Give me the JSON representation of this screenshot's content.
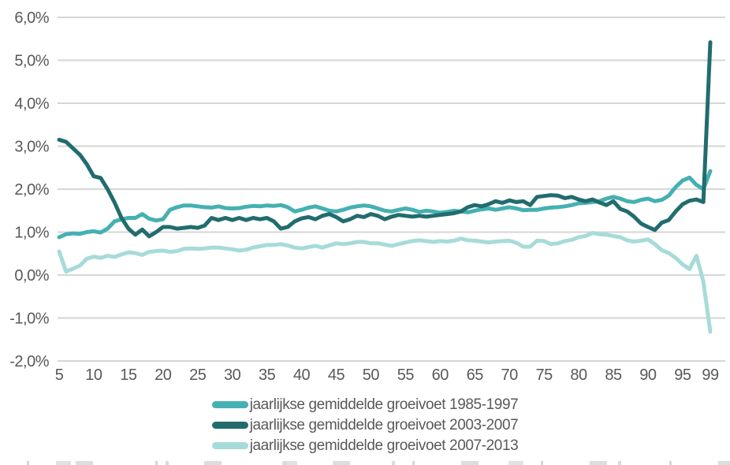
{
  "chart_data": {
    "type": "line",
    "title": "",
    "xlabel": "",
    "ylabel": "",
    "ylim": [
      -2.0,
      6.0
    ],
    "grid": "horizontal",
    "legend_position": "bottom-center",
    "y_ticks": {
      "values": [
        6,
        5,
        4,
        3,
        2,
        1,
        0,
        -1,
        -2
      ],
      "labels": [
        "6,0%",
        "5,0%",
        "4,0%",
        "3,0%",
        "2,0%",
        "1,0%",
        "0,0%",
        "-1,0%",
        "-2,0%"
      ]
    },
    "x_ticks": [
      5,
      10,
      15,
      20,
      25,
      30,
      35,
      40,
      45,
      50,
      55,
      60,
      65,
      70,
      75,
      80,
      85,
      90,
      95,
      99
    ],
    "x_range": [
      5,
      99
    ],
    "x_step": 1,
    "series": [
      {
        "name": "jaarlijkse gemiddelde groeivoet 1985-1997",
        "color": "#45b0b2",
        "values": [
          0.88,
          0.95,
          0.97,
          0.96,
          1.0,
          1.02,
          0.99,
          1.08,
          1.25,
          1.3,
          1.33,
          1.33,
          1.42,
          1.31,
          1.27,
          1.3,
          1.52,
          1.58,
          1.62,
          1.62,
          1.6,
          1.58,
          1.57,
          1.6,
          1.56,
          1.55,
          1.56,
          1.59,
          1.61,
          1.6,
          1.62,
          1.61,
          1.63,
          1.58,
          1.48,
          1.52,
          1.57,
          1.6,
          1.55,
          1.5,
          1.48,
          1.52,
          1.57,
          1.6,
          1.62,
          1.6,
          1.55,
          1.5,
          1.48,
          1.52,
          1.55,
          1.52,
          1.47,
          1.5,
          1.48,
          1.45,
          1.47,
          1.5,
          1.48,
          1.46,
          1.5,
          1.53,
          1.55,
          1.52,
          1.55,
          1.58,
          1.55,
          1.51,
          1.52,
          1.52,
          1.55,
          1.57,
          1.58,
          1.6,
          1.63,
          1.67,
          1.68,
          1.7,
          1.72,
          1.78,
          1.82,
          1.78,
          1.72,
          1.7,
          1.75,
          1.78,
          1.72,
          1.75,
          1.85,
          2.05,
          2.2,
          2.27,
          2.1,
          2.0,
          2.42
        ]
      },
      {
        "name": "jaarlijkse gemiddelde groeivoet 2003-2007",
        "color": "#226c6e",
        "values": [
          3.15,
          3.1,
          2.95,
          2.8,
          2.58,
          2.3,
          2.26,
          2.0,
          1.69,
          1.33,
          1.08,
          0.94,
          1.06,
          0.9,
          1.0,
          1.12,
          1.12,
          1.08,
          1.1,
          1.12,
          1.1,
          1.15,
          1.33,
          1.28,
          1.33,
          1.28,
          1.33,
          1.28,
          1.33,
          1.3,
          1.33,
          1.25,
          1.08,
          1.12,
          1.25,
          1.32,
          1.35,
          1.3,
          1.38,
          1.42,
          1.35,
          1.25,
          1.3,
          1.38,
          1.35,
          1.42,
          1.38,
          1.3,
          1.36,
          1.4,
          1.38,
          1.36,
          1.38,
          1.36,
          1.38,
          1.4,
          1.42,
          1.44,
          1.48,
          1.58,
          1.63,
          1.6,
          1.65,
          1.72,
          1.68,
          1.74,
          1.7,
          1.72,
          1.63,
          1.82,
          1.84,
          1.86,
          1.85,
          1.79,
          1.82,
          1.76,
          1.72,
          1.76,
          1.69,
          1.63,
          1.72,
          1.54,
          1.48,
          1.36,
          1.2,
          1.12,
          1.05,
          1.22,
          1.28,
          1.48,
          1.65,
          1.73,
          1.76,
          1.7,
          5.42
        ]
      },
      {
        "name": "jaarlijkse gemiddelde groeivoet 2007-2013",
        "color": "#a6dbd9",
        "values": [
          0.55,
          0.08,
          0.15,
          0.22,
          0.38,
          0.43,
          0.4,
          0.45,
          0.42,
          0.48,
          0.53,
          0.51,
          0.47,
          0.54,
          0.56,
          0.57,
          0.54,
          0.56,
          0.61,
          0.62,
          0.61,
          0.62,
          0.64,
          0.64,
          0.62,
          0.6,
          0.57,
          0.59,
          0.64,
          0.67,
          0.7,
          0.7,
          0.72,
          0.69,
          0.64,
          0.62,
          0.65,
          0.68,
          0.64,
          0.69,
          0.74,
          0.72,
          0.74,
          0.77,
          0.77,
          0.74,
          0.74,
          0.71,
          0.68,
          0.72,
          0.76,
          0.79,
          0.81,
          0.79,
          0.77,
          0.79,
          0.78,
          0.8,
          0.85,
          0.81,
          0.8,
          0.78,
          0.76,
          0.78,
          0.79,
          0.8,
          0.75,
          0.66,
          0.66,
          0.8,
          0.79,
          0.72,
          0.74,
          0.79,
          0.82,
          0.88,
          0.91,
          0.98,
          0.95,
          0.94,
          0.91,
          0.88,
          0.81,
          0.78,
          0.8,
          0.83,
          0.72,
          0.58,
          0.51,
          0.4,
          0.25,
          0.14,
          0.45,
          -0.15,
          -1.32
        ]
      }
    ],
    "style": {
      "gridline_color": "#d6d6d6",
      "axis_label_color": "#59595b",
      "line_width": 5
    }
  }
}
